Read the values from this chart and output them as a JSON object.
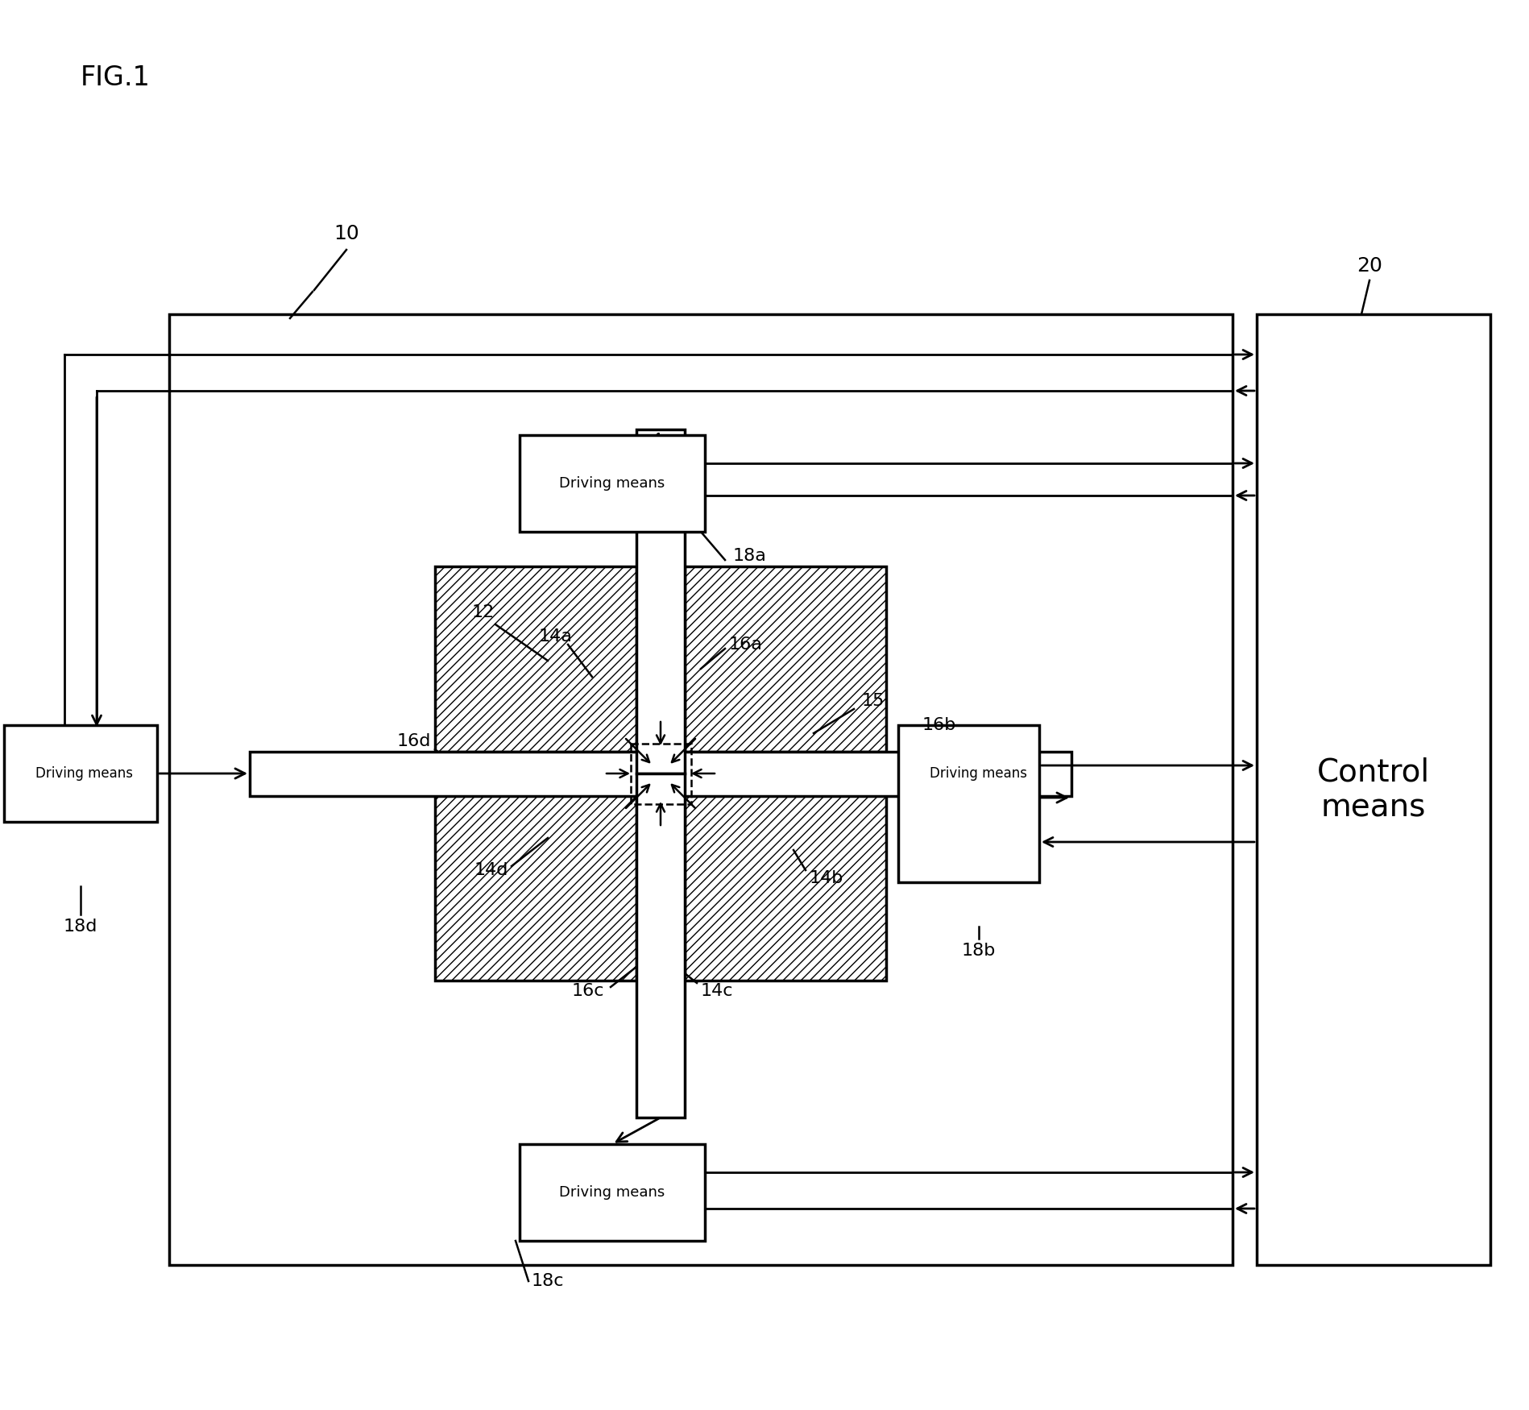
{
  "fig_title": "FIG.1",
  "bg_color": "#ffffff",
  "label_10": "10",
  "label_20": "20",
  "label_12": "12",
  "label_15": "15",
  "label_14a": "14a",
  "label_14b": "14b",
  "label_14c": "14c",
  "label_14d": "14d",
  "label_16a": "16a",
  "label_16b": "16b",
  "label_16c": "16c",
  "label_16d": "16d",
  "label_18a": "18a",
  "label_18b": "18b",
  "label_18c": "18c",
  "label_18d": "18d",
  "text_driving": "Driving means",
  "text_control": "Control\nmeans"
}
